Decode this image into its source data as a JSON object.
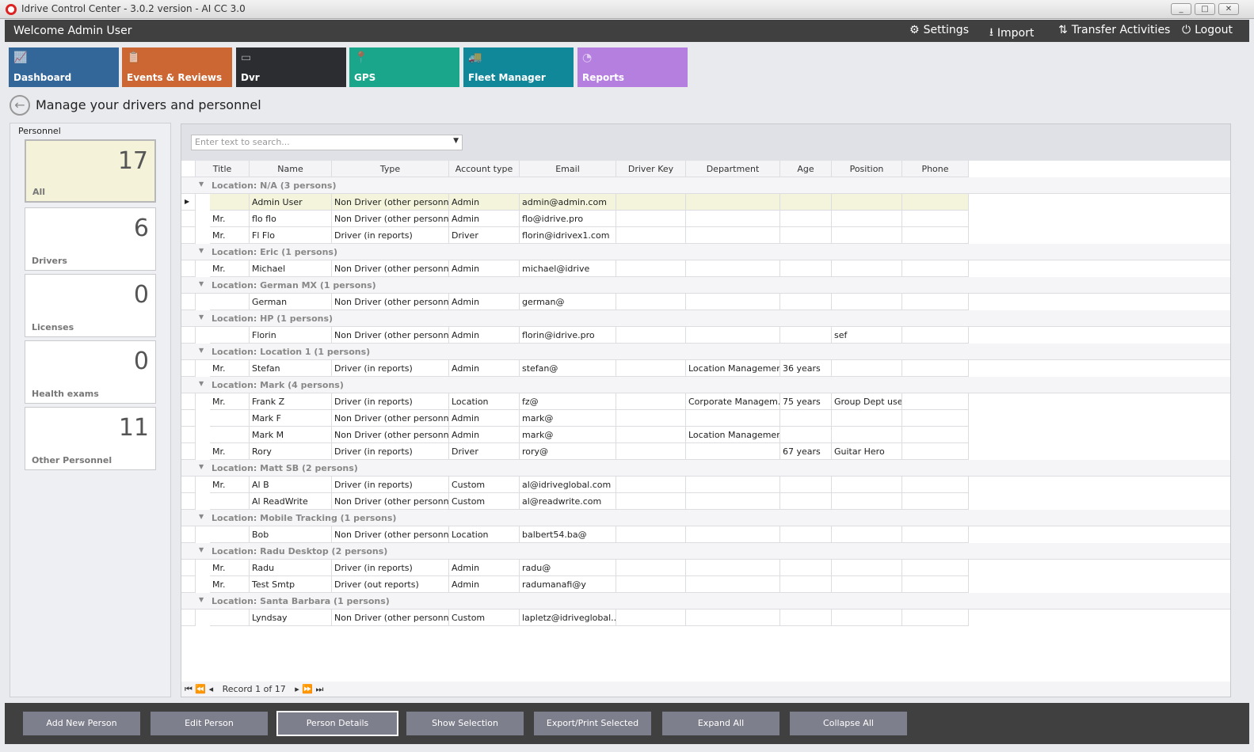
{
  "window": {
    "title": "Idrive Control Center - 3.0.2 version - AI CC 3.0",
    "minimize": "_",
    "maximize": "□",
    "close": "✕"
  },
  "header": {
    "welcome": "Welcome Admin User",
    "settings": "Settings",
    "import": "Import",
    "transfer": "Transfer Activities",
    "logout": "Logout"
  },
  "tiles": [
    {
      "label": "Dashboard",
      "color": "#336699",
      "icon": "chart-icon"
    },
    {
      "label": "Events & Reviews",
      "color": "#cc6633",
      "icon": "clipboard-icon"
    },
    {
      "label": "Dvr",
      "color": "#2b2d31",
      "icon": "dvr-icon"
    },
    {
      "label": "GPS",
      "color": "#19a68a",
      "icon": "map-pin-icon"
    },
    {
      "label": "Fleet Manager",
      "color": "#11889a",
      "icon": "fleet-icon"
    },
    {
      "label": "Reports",
      "color": "#b57fe0",
      "icon": "pie-chart-icon"
    }
  ],
  "page": {
    "title": "Manage your drivers and personnel"
  },
  "sidebar": {
    "title": "Personnel",
    "cards": [
      {
        "count": "17",
        "label": "All"
      },
      {
        "count": "6",
        "label": "Drivers"
      },
      {
        "count": "0",
        "label": "Licenses"
      },
      {
        "count": "0",
        "label": "Health exams"
      },
      {
        "count": "11",
        "label": "Other Personnel"
      }
    ]
  },
  "grid": {
    "search_placeholder": "Enter text to search...",
    "columns": [
      "Title",
      "Name",
      "Type",
      "Account type",
      "Email",
      "Driver Key",
      "Department",
      "Age",
      "Position",
      "Phone"
    ],
    "groups": [
      {
        "label": "Location: N/A (3 persons)",
        "rows": [
          [
            "",
            "Admin User",
            "Non Driver (other personnel)",
            "Admin",
            "admin@admin.com",
            "",
            "",
            "",
            "",
            ""
          ],
          [
            "Mr.",
            "flo flo",
            "Non Driver (other personnel)",
            "Admin",
            "flo@idrive.pro",
            "",
            "",
            "",
            "",
            ""
          ],
          [
            "Mr.",
            "Fl Flo",
            "Driver (in reports)",
            "Driver",
            "florin@idrivex1.com",
            "",
            "",
            "",
            "",
            ""
          ]
        ]
      },
      {
        "label": "Location: Eric (1 persons)",
        "rows": [
          [
            "Mr.",
            "Michael",
            "Non Driver (other personnel)",
            "Admin",
            "michael@idrive",
            "",
            "",
            "",
            "",
            ""
          ]
        ]
      },
      {
        "label": "Location: German MX (1 persons)",
        "rows": [
          [
            "",
            "German",
            "Non Driver (other personnel)",
            "Admin",
            "german@",
            "",
            "",
            "",
            "",
            ""
          ]
        ]
      },
      {
        "label": "Location: HP (1 persons)",
        "rows": [
          [
            "",
            "Florin",
            "Non Driver (other personnel)",
            "Admin",
            "florin@idrive.pro",
            "",
            "",
            "",
            "sef",
            ""
          ]
        ]
      },
      {
        "label": "Location: Location 1 (1 persons)",
        "rows": [
          [
            "Mr.",
            "Stefan",
            "Driver (in reports)",
            "Admin",
            "stefan@",
            "",
            "Location Management",
            "36 years",
            "",
            ""
          ]
        ]
      },
      {
        "label": "Location: Mark (4 persons)",
        "rows": [
          [
            "Mr.",
            "Frank Z",
            "Driver (in reports)",
            "Location",
            "fz@",
            "",
            "Corporate Managem...",
            "75 years",
            "Group Dept user",
            ""
          ],
          [
            "",
            "Mark F",
            "Non Driver (other personnel)",
            "Admin",
            "mark@",
            "",
            "",
            "",
            "",
            ""
          ],
          [
            "",
            "Mark M",
            "Non Driver (other personnel)",
            "Admin",
            "mark@",
            "",
            "Location Management",
            "",
            "",
            ""
          ],
          [
            "Mr.",
            "Rory",
            "Driver (in reports)",
            "Driver",
            "rory@",
            "",
            "",
            "67 years",
            "Guitar Hero",
            ""
          ]
        ]
      },
      {
        "label": "Location: Matt SB (2 persons)",
        "rows": [
          [
            "Mr.",
            "Al B",
            "Driver (in reports)",
            "Custom",
            "al@idriveglobal.com",
            "",
            "",
            "",
            "",
            ""
          ],
          [
            "",
            "Al ReadWrite",
            "Non Driver (other personnel)",
            "Custom",
            "al@readwrite.com",
            "",
            "",
            "",
            "",
            ""
          ]
        ]
      },
      {
        "label": "Location: Mobile Tracking (1 persons)",
        "rows": [
          [
            "",
            "Bob",
            "Non Driver (other personnel)",
            "Location",
            "balbert54.ba@",
            "",
            "",
            "",
            "",
            ""
          ]
        ]
      },
      {
        "label": "Location: Radu Desktop (2 persons)",
        "rows": [
          [
            "Mr.",
            "Radu",
            "Driver (in reports)",
            "Admin",
            "radu@",
            "",
            "",
            "",
            "",
            ""
          ],
          [
            "Mr.",
            "Test Smtp",
            "Driver (out reports)",
            "Admin",
            "radumanafi@y",
            "",
            "",
            "",
            "",
            ""
          ]
        ]
      },
      {
        "label": "Location: Santa Barbara (1 persons)",
        "rows": [
          [
            "",
            "Lyndsay",
            "Non Driver (other personnel)",
            "Custom",
            "lapletz@idriveglobal....",
            "",
            "",
            "",
            "",
            ""
          ]
        ]
      }
    ],
    "pager": {
      "record": "Record 1 of 17"
    }
  },
  "footer": {
    "buttons": [
      "Add New Person",
      "Edit Person",
      "Person Details",
      "Show Selection",
      "Export/Print Selected",
      "Expand All",
      "Collapse All"
    ],
    "active": "Person Details"
  }
}
